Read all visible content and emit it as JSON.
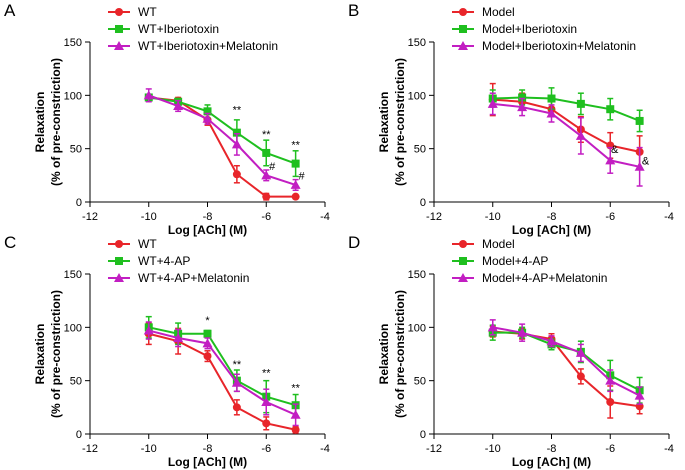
{
  "chart_data": [
    {
      "panel": "A",
      "type": "line",
      "xlabel": "Log [ACh] (M)",
      "ylabel_line1": "Relaxation",
      "ylabel_line2": "(% of pre-constriction)",
      "xlim": [
        -12,
        -4
      ],
      "ylim": [
        0,
        150
      ],
      "xticks": [
        -12,
        -10,
        -8,
        -6,
        -4
      ],
      "yticks": [
        0,
        50,
        100,
        150
      ],
      "x": [
        -10,
        -9,
        -8,
        -7,
        -6,
        -5
      ],
      "series": [
        {
          "name": "WT",
          "color": "#e8252a",
          "marker": "circle",
          "values": [
            98,
            95,
            77,
            26,
            5,
            5
          ],
          "errors": [
            3,
            3,
            5,
            8,
            3,
            1
          ]
        },
        {
          "name": "WT+Iberiotoxin",
          "color": "#1fbf1f",
          "marker": "square",
          "values": [
            98,
            94,
            85,
            65,
            46,
            36
          ],
          "errors": [
            3,
            3,
            6,
            12,
            12,
            12
          ]
        },
        {
          "name": "WT+Iberiotoxin+Melatonin",
          "color": "#c21ec2",
          "marker": "triangle",
          "values": [
            100,
            90,
            78,
            54,
            25,
            16
          ],
          "errors": [
            6,
            5,
            5,
            10,
            5,
            5
          ]
        }
      ],
      "annotations": [
        {
          "text": "**",
          "x": -7,
          "y": 83
        },
        {
          "text": "**",
          "x": -6,
          "y": 60
        },
        {
          "text": "**",
          "x": -5,
          "y": 50
        },
        {
          "text": "#",
          "x": -5.8,
          "y": 30
        },
        {
          "text": "#",
          "x": -4.8,
          "y": 21
        }
      ]
    },
    {
      "panel": "B",
      "type": "line",
      "xlabel": "Log [ACh] (M)",
      "ylabel_line1": "Relaxation",
      "ylabel_line2": "(% of pre-constriction)",
      "xlim": [
        -12,
        -4
      ],
      "ylim": [
        0,
        150
      ],
      "xticks": [
        -12,
        -10,
        -8,
        -6,
        -4
      ],
      "yticks": [
        0,
        50,
        100,
        150
      ],
      "x": [
        -10,
        -9,
        -8,
        -7,
        -6,
        -5
      ],
      "series": [
        {
          "name": "Model",
          "color": "#e8252a",
          "marker": "circle",
          "values": [
            96,
            94,
            87,
            68,
            53,
            47
          ],
          "errors": [
            15,
            8,
            7,
            12,
            12,
            15
          ]
        },
        {
          "name": "Model+Iberiotoxin",
          "color": "#1fbf1f",
          "marker": "square",
          "values": [
            97,
            98,
            97,
            92,
            87,
            76
          ],
          "errors": [
            8,
            7,
            10,
            10,
            10,
            10
          ]
        },
        {
          "name": "Model+Iberiotoxin+Melatonin",
          "color": "#c21ec2",
          "marker": "triangle",
          "values": [
            92,
            89,
            83,
            62,
            39,
            33
          ],
          "errors": [
            10,
            8,
            8,
            17,
            12,
            18
          ]
        }
      ],
      "annotations": [
        {
          "text": "&",
          "x": -5.85,
          "y": 46
        },
        {
          "text": "&",
          "x": -4.8,
          "y": 35
        }
      ]
    },
    {
      "panel": "C",
      "type": "line",
      "xlabel": "Log [ACh] (M)",
      "ylabel_line1": "Relaxation",
      "ylabel_line2": "(% of pre-constriction)",
      "xlim": [
        -12,
        -4
      ],
      "ylim": [
        0,
        150
      ],
      "xticks": [
        -12,
        -10,
        -8,
        -6,
        -4
      ],
      "yticks": [
        0,
        50,
        100,
        150
      ],
      "x": [
        -10,
        -9,
        -8,
        -7,
        -6,
        -5
      ],
      "series": [
        {
          "name": "WT",
          "color": "#e8252a",
          "marker": "circle",
          "values": [
            94,
            87,
            73,
            25,
            10,
            4
          ],
          "errors": [
            10,
            12,
            5,
            7,
            6,
            3
          ]
        },
        {
          "name": "WT+4-AP",
          "color": "#1fbf1f",
          "marker": "square",
          "values": [
            100,
            94,
            94,
            50,
            35,
            27
          ],
          "errors": [
            10,
            10,
            3,
            10,
            15,
            10
          ]
        },
        {
          "name": "WT+4-AP+Melatonin",
          "color": "#c21ec2",
          "marker": "triangle",
          "values": [
            97,
            90,
            85,
            48,
            30,
            18
          ],
          "errors": [
            8,
            8,
            5,
            8,
            12,
            10
          ]
        }
      ],
      "annotations": [
        {
          "text": "*",
          "x": -8,
          "y": 103
        },
        {
          "text": "**",
          "x": -7,
          "y": 62
        },
        {
          "text": "**",
          "x": -6,
          "y": 54
        },
        {
          "text": "**",
          "x": -5,
          "y": 40
        }
      ]
    },
    {
      "panel": "D",
      "type": "line",
      "xlabel": "Log [ACh] (M)",
      "ylabel_line1": "Relaxation",
      "ylabel_line2": "(% of pre-constriction)",
      "xlim": [
        -12,
        -4
      ],
      "ylim": [
        0,
        150
      ],
      "xticks": [
        -12,
        -10,
        -8,
        -6,
        -4
      ],
      "yticks": [
        0,
        50,
        100,
        150
      ],
      "x": [
        -10,
        -9,
        -8,
        -7,
        -6,
        -5
      ],
      "series": [
        {
          "name": "Model",
          "color": "#e8252a",
          "marker": "circle",
          "values": [
            96,
            94,
            89,
            54,
            30,
            26
          ],
          "errors": [
            5,
            5,
            5,
            7,
            15,
            7
          ]
        },
        {
          "name": "Model+4-AP",
          "color": "#1fbf1f",
          "marker": "square",
          "values": [
            95,
            95,
            84,
            77,
            55,
            41
          ],
          "errors": [
            7,
            5,
            5,
            10,
            14,
            12
          ]
        },
        {
          "name": "Model+4-AP+Melatonin",
          "color": "#c21ec2",
          "marker": "triangle",
          "values": [
            100,
            95,
            87,
            76,
            50,
            36
          ],
          "errors": [
            7,
            8,
            5,
            8,
            10,
            8
          ]
        }
      ],
      "annotations": []
    }
  ]
}
